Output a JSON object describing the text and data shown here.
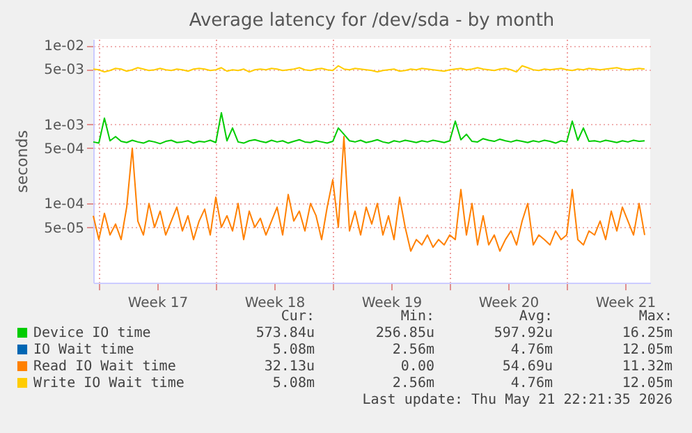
{
  "chart_data": {
    "type": "line",
    "title": "Average latency for /dev/sda - by month",
    "ylabel": "seconds",
    "log": true,
    "grid": true,
    "legend": "bottom",
    "ylim": [
      1e-05,
      0.012
    ],
    "yticks": [
      {
        "value": 0.01,
        "label": "1e-02"
      },
      {
        "value": 0.005,
        "label": "5e-03"
      },
      {
        "value": 0.001,
        "label": "1e-03"
      },
      {
        "value": 0.0005,
        "label": "5e-04"
      },
      {
        "value": 0.0001,
        "label": "1e-04"
      },
      {
        "value": 5e-05,
        "label": "5e-05"
      }
    ],
    "xlim": [
      "2026-04-19T16:00",
      "2026-05-23T00:00"
    ],
    "xticks": [
      {
        "value": "2026-04-20",
        "label": null
      },
      {
        "value": "2026-04-23T12:00",
        "label": "Week 17"
      },
      {
        "value": "2026-04-27",
        "label": null
      },
      {
        "value": "2026-04-30T12:00",
        "label": "Week 18"
      },
      {
        "value": "2026-05-04",
        "label": null
      },
      {
        "value": "2026-05-07T12:00",
        "label": "Week 19"
      },
      {
        "value": "2026-05-11",
        "label": null
      },
      {
        "value": "2026-05-14T12:00",
        "label": "Week 20"
      },
      {
        "value": "2026-05-18",
        "label": null
      },
      {
        "value": "2026-05-21T12:00",
        "label": "Week 21"
      }
    ],
    "x": [
      "2026-04-19T16:00",
      "2026-04-20T00:00",
      "2026-04-20T08:00",
      "2026-04-20T16:00",
      "2026-04-21T00:00",
      "2026-04-21T08:00",
      "2026-04-21T16:00",
      "2026-04-22T00:00",
      "2026-04-22T08:00",
      "2026-04-22T16:00",
      "2026-04-23T00:00",
      "2026-04-23T08:00",
      "2026-04-23T16:00",
      "2026-04-24T00:00",
      "2026-04-24T08:00",
      "2026-04-24T16:00",
      "2026-04-25T00:00",
      "2026-04-25T08:00",
      "2026-04-25T16:00",
      "2026-04-26T00:00",
      "2026-04-26T08:00",
      "2026-04-26T16:00",
      "2026-04-27T00:00",
      "2026-04-27T08:00",
      "2026-04-27T16:00",
      "2026-04-28T00:00",
      "2026-04-28T08:00",
      "2026-04-28T16:00",
      "2026-04-29T00:00",
      "2026-04-29T08:00",
      "2026-04-29T16:00",
      "2026-04-30T00:00",
      "2026-04-30T08:00",
      "2026-04-30T16:00",
      "2026-05-01T00:00",
      "2026-05-01T08:00",
      "2026-05-01T16:00",
      "2026-05-02T00:00",
      "2026-05-02T08:00",
      "2026-05-02T16:00",
      "2026-05-03T00:00",
      "2026-05-03T08:00",
      "2026-05-03T16:00",
      "2026-05-04T00:00",
      "2026-05-04T08:00",
      "2026-05-04T16:00",
      "2026-05-05T00:00",
      "2026-05-05T08:00",
      "2026-05-05T16:00",
      "2026-05-06T00:00",
      "2026-05-06T08:00",
      "2026-05-06T16:00",
      "2026-05-07T00:00",
      "2026-05-07T08:00",
      "2026-05-07T16:00",
      "2026-05-08T00:00",
      "2026-05-08T08:00",
      "2026-05-08T16:00",
      "2026-05-09T00:00",
      "2026-05-09T08:00",
      "2026-05-09T16:00",
      "2026-05-10T00:00",
      "2026-05-10T08:00",
      "2026-05-10T16:00",
      "2026-05-11T00:00",
      "2026-05-11T08:00",
      "2026-05-11T16:00",
      "2026-05-12T00:00",
      "2026-05-12T08:00",
      "2026-05-12T16:00",
      "2026-05-13T00:00",
      "2026-05-13T08:00",
      "2026-05-13T16:00",
      "2026-05-14T00:00",
      "2026-05-14T08:00",
      "2026-05-14T16:00",
      "2026-05-15T00:00",
      "2026-05-15T08:00",
      "2026-05-15T16:00",
      "2026-05-16T00:00",
      "2026-05-16T08:00",
      "2026-05-16T16:00",
      "2026-05-17T00:00",
      "2026-05-17T08:00",
      "2026-05-17T16:00",
      "2026-05-18T00:00",
      "2026-05-18T08:00",
      "2026-05-18T16:00",
      "2026-05-19T00:00",
      "2026-05-19T08:00",
      "2026-05-19T16:00",
      "2026-05-20T00:00",
      "2026-05-20T08:00",
      "2026-05-20T16:00",
      "2026-05-21T00:00",
      "2026-05-21T08:00",
      "2026-05-21T16:00",
      "2026-05-22T00:00",
      "2026-05-22T08:00",
      "2026-05-22T16:00"
    ],
    "series": [
      {
        "name": "Device IO time",
        "color": "#00cc00",
        "values": [
          0.0006,
          0.00058,
          0.0012,
          0.00062,
          0.0007,
          0.00061,
          0.00059,
          0.00063,
          0.0006,
          0.00058,
          0.00062,
          0.0006,
          0.00057,
          0.00061,
          0.00063,
          0.00059,
          0.0006,
          0.00062,
          0.00058,
          0.00061,
          0.0006,
          0.00063,
          0.00059,
          0.0014,
          0.00062,
          0.0009,
          0.0006,
          0.00058,
          0.00062,
          0.00064,
          0.00061,
          0.00059,
          0.00063,
          0.0006,
          0.00062,
          0.00058,
          0.00061,
          0.00064,
          0.0006,
          0.00059,
          0.00062,
          0.0006,
          0.00058,
          0.00061,
          0.0009,
          0.00075,
          0.00062,
          0.0006,
          0.00063,
          0.00059,
          0.00061,
          0.00064,
          0.0006,
          0.00058,
          0.00062,
          0.0006,
          0.00063,
          0.00061,
          0.00059,
          0.00062,
          0.0006,
          0.00063,
          0.00061,
          0.00059,
          0.00062,
          0.0011,
          0.00064,
          0.00075,
          0.00061,
          0.0006,
          0.00066,
          0.00063,
          0.00061,
          0.00065,
          0.00062,
          0.0006,
          0.00063,
          0.00061,
          0.00059,
          0.00062,
          0.0006,
          0.00063,
          0.00061,
          0.00058,
          0.00062,
          0.0006,
          0.0011,
          0.00063,
          0.0009,
          0.00061,
          0.00062,
          0.0006,
          0.00063,
          0.00061,
          0.00059,
          0.00062,
          0.0006,
          0.00063,
          0.00061,
          0.00062
        ]
      },
      {
        "name": "IO Wait time",
        "color": "#0066b3",
        "values": [
          null,
          null,
          null,
          null,
          null,
          null,
          null,
          null,
          null,
          null,
          null,
          null,
          null,
          null,
          null,
          null,
          null,
          null,
          null,
          null,
          null,
          null,
          null,
          null,
          null,
          null,
          null,
          null,
          null,
          null,
          null,
          null,
          null,
          null,
          null,
          null,
          null,
          null,
          null,
          null,
          null,
          null,
          null,
          null,
          null,
          null,
          null,
          null,
          null,
          null,
          null,
          null,
          null,
          null,
          null,
          null,
          null,
          null,
          null,
          null,
          null,
          null,
          null,
          null,
          null,
          null,
          null,
          null,
          null,
          null,
          null,
          null,
          null,
          null,
          null,
          null,
          null,
          null,
          null,
          null,
          null,
          null,
          null,
          null,
          null,
          null,
          null,
          null,
          null,
          null,
          null,
          null,
          null,
          null,
          null,
          null,
          null,
          null,
          null,
          null
        ]
      },
      {
        "name": "Read IO Wait time",
        "color": "#ff8000",
        "values": [
          7e-05,
          3.5e-05,
          7.5e-05,
          4e-05,
          5.5e-05,
          3.5e-05,
          9e-05,
          0.0005,
          6e-05,
          4e-05,
          0.0001,
          5e-05,
          8e-05,
          4e-05,
          6e-05,
          9e-05,
          4.5e-05,
          7e-05,
          3.5e-05,
          6e-05,
          8.5e-05,
          4e-05,
          0.00012,
          5e-05,
          7e-05,
          4.5e-05,
          0.0001,
          3.5e-05,
          8e-05,
          5e-05,
          6.5e-05,
          4e-05,
          6e-05,
          9e-05,
          4e-05,
          0.00013,
          6e-05,
          8e-05,
          4.5e-05,
          0.0001,
          7e-05,
          3.5e-05,
          9e-05,
          0.0002,
          5e-05,
          0.0007,
          4.5e-05,
          8e-05,
          4e-05,
          9e-05,
          5.5e-05,
          0.0001,
          4e-05,
          7e-05,
          3.5e-05,
          0.00012,
          5e-05,
          2.5e-05,
          3.5e-05,
          3e-05,
          4e-05,
          2.8e-05,
          3.5e-05,
          3e-05,
          4e-05,
          3.5e-05,
          0.00015,
          4e-05,
          0.0001,
          3e-05,
          7e-05,
          3e-05,
          4e-05,
          2.5e-05,
          3.5e-05,
          4.5e-05,
          3e-05,
          6e-05,
          0.0001,
          3e-05,
          4e-05,
          3.5e-05,
          3e-05,
          4.5e-05,
          3.5e-05,
          4e-05,
          0.00015,
          3.5e-05,
          3e-05,
          4.5e-05,
          4e-05,
          6e-05,
          3.5e-05,
          8e-05,
          4.5e-05,
          9e-05,
          6e-05,
          4e-05,
          0.0001,
          4e-05
        ]
      },
      {
        "name": "Write IO Wait time",
        "color": "#ffcc00",
        "values": [
          0.005,
          0.0049,
          0.0046,
          0.0048,
          0.0051,
          0.005,
          0.0047,
          0.0049,
          0.0052,
          0.005,
          0.0048,
          0.0049,
          0.0051,
          0.0049,
          0.0048,
          0.005,
          0.0049,
          0.0047,
          0.005,
          0.0051,
          0.005,
          0.0048,
          0.0049,
          0.0052,
          0.0047,
          0.0049,
          0.0048,
          0.005,
          0.0046,
          0.0049,
          0.005,
          0.0049,
          0.0051,
          0.005,
          0.0048,
          0.0049,
          0.005,
          0.0052,
          0.0049,
          0.0048,
          0.005,
          0.0051,
          0.0049,
          0.0048,
          0.0055,
          0.005,
          0.0049,
          0.0051,
          0.005,
          0.0049,
          0.0048,
          0.0046,
          0.0048,
          0.0049,
          0.005,
          0.0047,
          0.0048,
          0.005,
          0.0049,
          0.0051,
          0.005,
          0.0049,
          0.0048,
          0.0047,
          0.0049,
          0.005,
          0.0051,
          0.0049,
          0.005,
          0.0052,
          0.005,
          0.0049,
          0.0048,
          0.005,
          0.0051,
          0.0049,
          0.0046,
          0.0055,
          0.0052,
          0.0049,
          0.0048,
          0.005,
          0.0049,
          0.005,
          0.0051,
          0.0049,
          0.0048,
          0.005,
          0.0049,
          0.0051,
          0.005,
          0.0049,
          0.005,
          0.0051,
          0.0052,
          0.005,
          0.0049,
          0.005,
          0.0051,
          0.005
        ]
      }
    ],
    "annotations": [
      "Cur:",
      "Min:",
      "Avg:",
      "Max:",
      "573.84u",
      "256.85u",
      "597.92u",
      "16.25m",
      "5.08m",
      "2.56m",
      "4.76m",
      "12.05m",
      "32.13u",
      "0.00",
      "54.69u",
      "11.32m",
      "5.08m",
      "2.56m",
      "4.76m",
      "12.05m",
      "Last update: Thu May 21 22:21:35 2026"
    ]
  }
}
